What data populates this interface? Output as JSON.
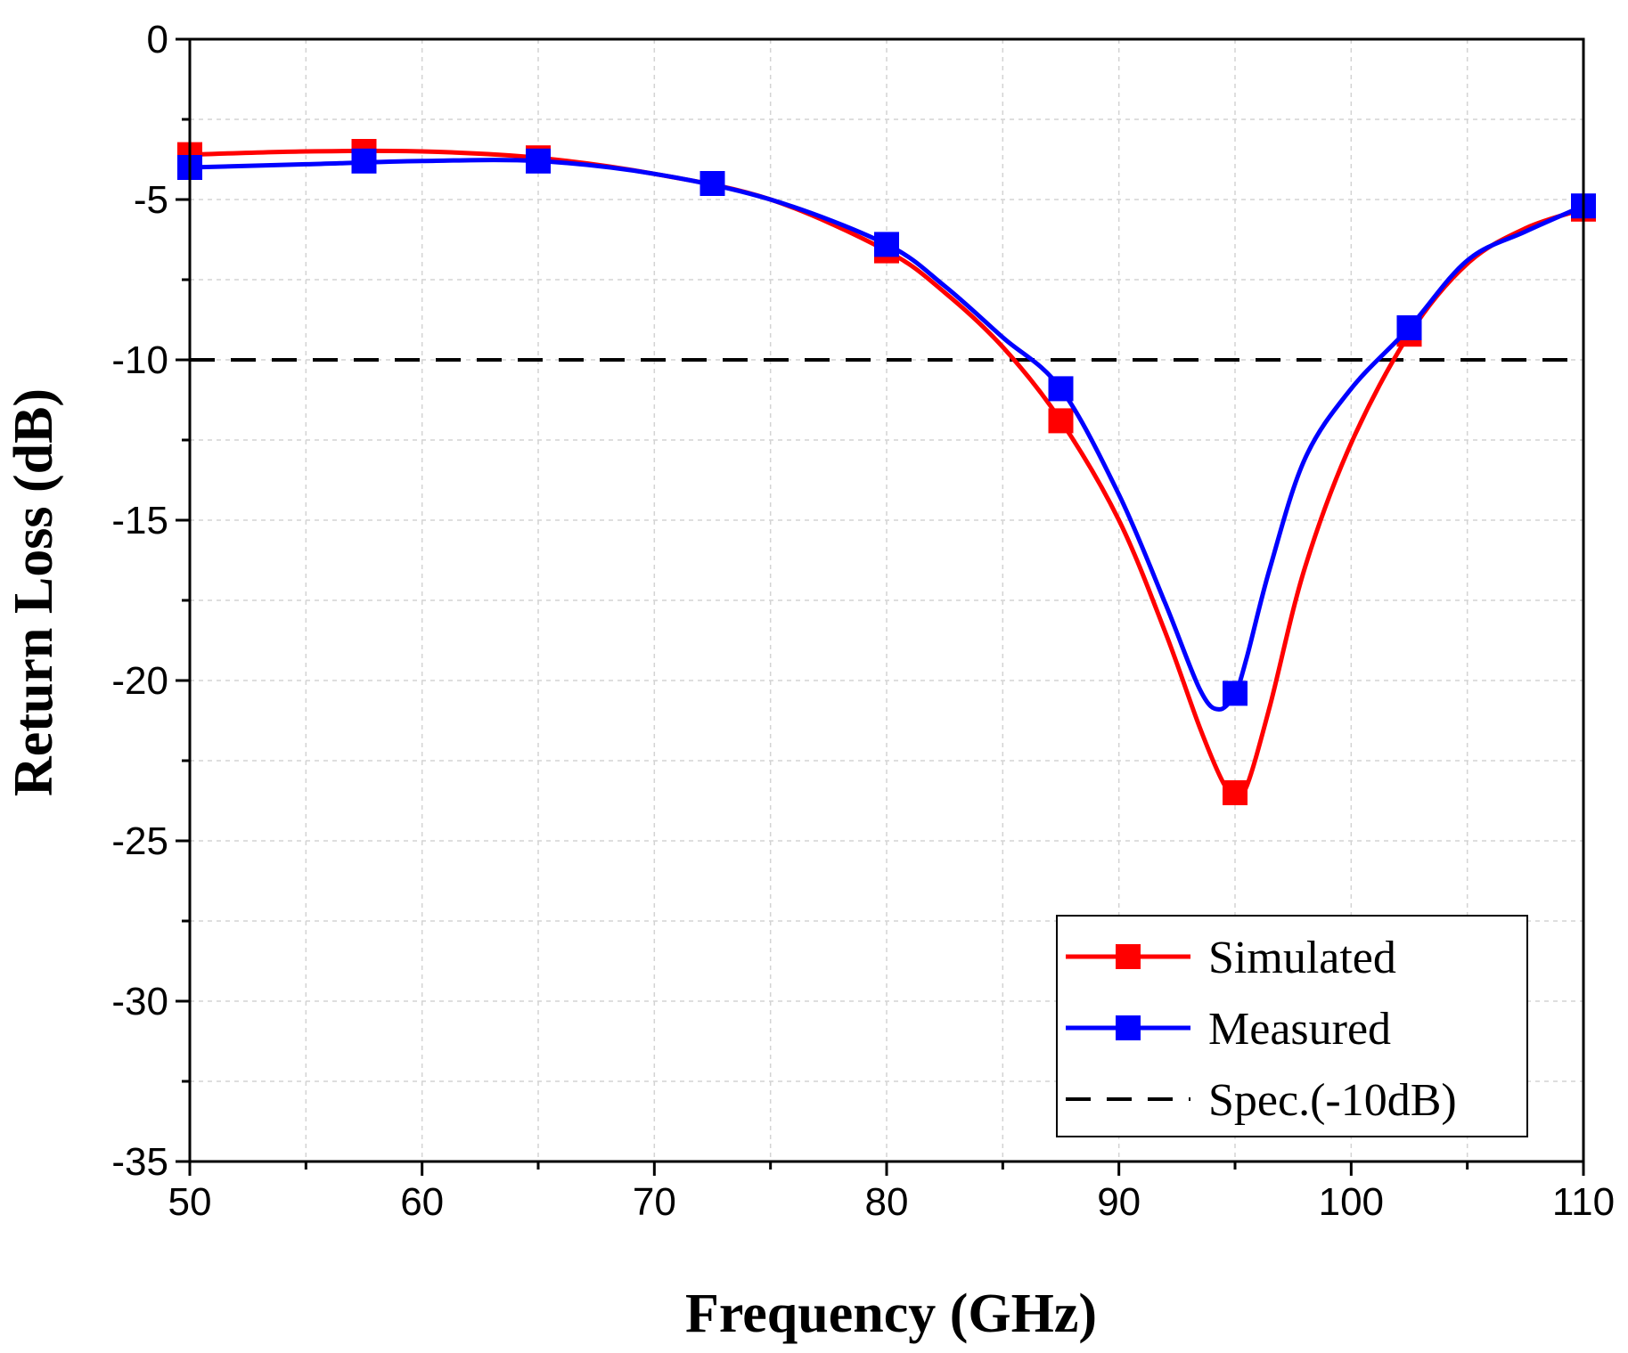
{
  "chart_data": {
    "type": "line",
    "title": "",
    "xlabel": "Frequency (GHz)",
    "ylabel": "Return Loss (dB)",
    "xlim": [
      50,
      110
    ],
    "ylim": [
      -35,
      0
    ],
    "x_ticks": [
      50,
      60,
      70,
      80,
      90,
      100,
      110
    ],
    "y_ticks": [
      0,
      -5,
      -10,
      -15,
      -20,
      -25,
      -30,
      -35
    ],
    "x_minor_step": 5,
    "y_minor_step": 2.5,
    "grid": true,
    "legend_position": "bottom-right",
    "series": [
      {
        "name": "Simulated",
        "color": "#ff0000",
        "marker": "square",
        "x": [
          50,
          55,
          60,
          65,
          70,
          75,
          80,
          82.5,
          85,
          87.5,
          90,
          92,
          93.5,
          94.5,
          95,
          95.5,
          96.5,
          98,
          100,
          102.5,
          105,
          107.5,
          110
        ],
        "y": [
          -3.6,
          -3.5,
          -3.5,
          -3.7,
          -4.2,
          -5.0,
          -6.6,
          -7.9,
          -9.6,
          -11.9,
          -15.0,
          -18.5,
          -21.5,
          -23.2,
          -23.5,
          -23.3,
          -20.8,
          -16.5,
          -12.6,
          -9.2,
          -7.0,
          -5.9,
          -5.3
        ],
        "marker_x": [
          50,
          57.5,
          65,
          72.5,
          80,
          87.5,
          95,
          102.5,
          110
        ],
        "marker_y": [
          -3.6,
          -3.5,
          -3.7,
          -4.5,
          -6.6,
          -11.9,
          -23.5,
          -9.2,
          -5.3
        ]
      },
      {
        "name": "Measured",
        "color": "#0000ff",
        "marker": "square",
        "x": [
          50,
          55,
          60,
          65,
          70,
          75,
          80,
          82.5,
          85,
          87.5,
          90,
          92,
          93.5,
          94.3,
          95,
          95.5,
          96.5,
          98,
          100,
          102.5,
          105,
          107.5,
          110
        ],
        "y": [
          -4.0,
          -3.9,
          -3.8,
          -3.8,
          -4.2,
          -5.0,
          -6.4,
          -7.7,
          -9.3,
          -10.9,
          -14.2,
          -17.6,
          -20.3,
          -20.9,
          -20.4,
          -19.3,
          -16.5,
          -13.1,
          -10.9,
          -9.0,
          -6.9,
          -6.0,
          -5.2
        ],
        "marker_x": [
          50,
          57.5,
          65,
          72.5,
          80,
          87.5,
          95,
          102.5,
          110
        ],
        "marker_y": [
          -4.0,
          -3.8,
          -3.8,
          -4.5,
          -6.4,
          -10.9,
          -20.4,
          -9.0,
          -5.2
        ]
      }
    ],
    "reference_line": {
      "name": "Spec.(-10dB)",
      "y": -10,
      "color": "#000000",
      "style": "dashed"
    },
    "legend": [
      "Simulated",
      "Measured",
      "Spec.(-10dB)"
    ]
  }
}
